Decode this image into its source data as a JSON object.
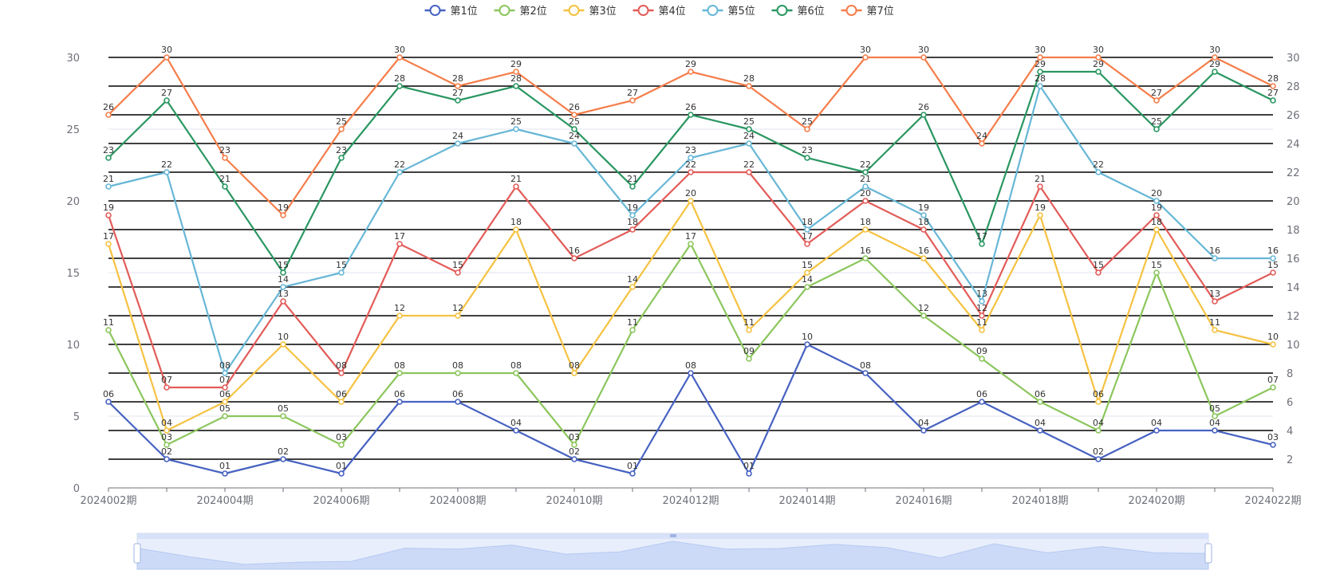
{
  "chart_data": {
    "type": "line",
    "categories": [
      "2024002期",
      "2024003期",
      "2024004期",
      "2024005期",
      "2024006期",
      "2024007期",
      "2024008期",
      "2024009期",
      "2024010期",
      "2024011期",
      "2024012期",
      "2024013期",
      "2024014期",
      "2024015期",
      "2024016期",
      "2024017期",
      "2024018期",
      "2024019期",
      "2024020期",
      "2024021期",
      "2024022期"
    ],
    "x_tick_labels": [
      "2024002期",
      "2024004期",
      "2024006期",
      "2024008期",
      "2024010期",
      "2024012期",
      "2024014期",
      "2024016期",
      "2024018期",
      "2024020期",
      "2024022期"
    ],
    "ylim": [
      0,
      30
    ],
    "y_ticks": [
      "0",
      "5",
      "10",
      "15",
      "20",
      "25",
      "30"
    ],
    "y2_ticks": [
      "2",
      "4",
      "6",
      "8",
      "10",
      "12",
      "14",
      "16",
      "18",
      "20",
      "22",
      "24",
      "26",
      "28",
      "30"
    ],
    "grid": true,
    "legend_position": "top-center",
    "series": [
      {
        "name": "第1位",
        "color": "#4762c1",
        "values": [
          6,
          2,
          1,
          2,
          1,
          6,
          6,
          4,
          2,
          1,
          8,
          1,
          10,
          8,
          4,
          6,
          4,
          2,
          4,
          4,
          3
        ],
        "labels": [
          "06",
          "02",
          "01",
          "02",
          "01",
          "06",
          "06",
          "04",
          "02",
          "01",
          "08",
          "01",
          "10",
          "08",
          "04",
          "06",
          "04",
          "02",
          "04",
          "04",
          "03"
        ]
      },
      {
        "name": "第2位",
        "color": "#8cc65d",
        "values": [
          11,
          3,
          5,
          5,
          3,
          8,
          8,
          8,
          3,
          11,
          17,
          9,
          14,
          16,
          12,
          9,
          6,
          4,
          15,
          5,
          7
        ],
        "labels": [
          "11",
          "03",
          "05",
          "05",
          "03",
          "08",
          "08",
          "08",
          "03",
          "11",
          "17",
          "09",
          "14",
          "16",
          "12",
          "09",
          "06",
          "04",
          "15",
          "05",
          "07"
        ]
      },
      {
        "name": "第3位",
        "color": "#f5c242",
        "values": [
          17,
          4,
          6,
          10,
          6,
          12,
          12,
          18,
          8,
          14,
          20,
          11,
          15,
          18,
          16,
          11,
          19,
          6,
          18,
          11,
          10
        ],
        "labels": [
          "17",
          "04",
          "06",
          "10",
          "06",
          "12",
          "12",
          "18",
          "08",
          "14",
          "20",
          "11",
          "15",
          "18",
          "16",
          "11",
          "19",
          "06",
          "18",
          "11",
          "10"
        ]
      },
      {
        "name": "第4位",
        "color": "#e25c59",
        "values": [
          19,
          7,
          7,
          13,
          8,
          17,
          15,
          21,
          16,
          18,
          22,
          22,
          17,
          20,
          18,
          12,
          21,
          15,
          19,
          13,
          15
        ],
        "labels": [
          "19",
          "07",
          "07",
          "13",
          "08",
          "17",
          "15",
          "21",
          "16",
          "18",
          "22",
          "22",
          "17",
          "20",
          "18",
          "12",
          "21",
          "15",
          "19",
          "13",
          "15"
        ]
      },
      {
        "name": "第5位",
        "color": "#67b7d6",
        "values": [
          21,
          22,
          8,
          14,
          15,
          22,
          24,
          25,
          24,
          19,
          23,
          24,
          18,
          21,
          19,
          13,
          28,
          22,
          20,
          16,
          16
        ],
        "labels": [
          "21",
          "22",
          "08",
          "14",
          "15",
          "22",
          "24",
          "25",
          "24",
          "19",
          "23",
          "24",
          "18",
          "21",
          "19",
          "13",
          "28",
          "22",
          "20",
          "16",
          "16"
        ]
      },
      {
        "name": "第6位",
        "color": "#2a9761",
        "values": [
          23,
          27,
          21,
          15,
          23,
          28,
          27,
          28,
          25,
          21,
          26,
          25,
          23,
          22,
          26,
          17,
          29,
          29,
          25,
          29,
          27
        ],
        "labels": [
          "23",
          "27",
          "21",
          "15",
          "23",
          "28",
          "27",
          "28",
          "25",
          "21",
          "26",
          "25",
          "23",
          "22",
          "26",
          "17",
          "29",
          "29",
          "25",
          "29",
          "27"
        ]
      },
      {
        "name": "第7位",
        "color": "#f57d4a",
        "values": [
          26,
          30,
          23,
          19,
          25,
          30,
          28,
          29,
          26,
          27,
          29,
          28,
          25,
          30,
          30,
          24,
          30,
          30,
          27,
          30,
          28
        ],
        "labels": [
          "26",
          "30",
          "23",
          "19",
          "25",
          "30",
          "28",
          "29",
          "26",
          "27",
          "29",
          "28",
          "25",
          "30",
          "30",
          "24",
          "30",
          "30",
          "27",
          "30",
          "28"
        ]
      }
    ]
  }
}
